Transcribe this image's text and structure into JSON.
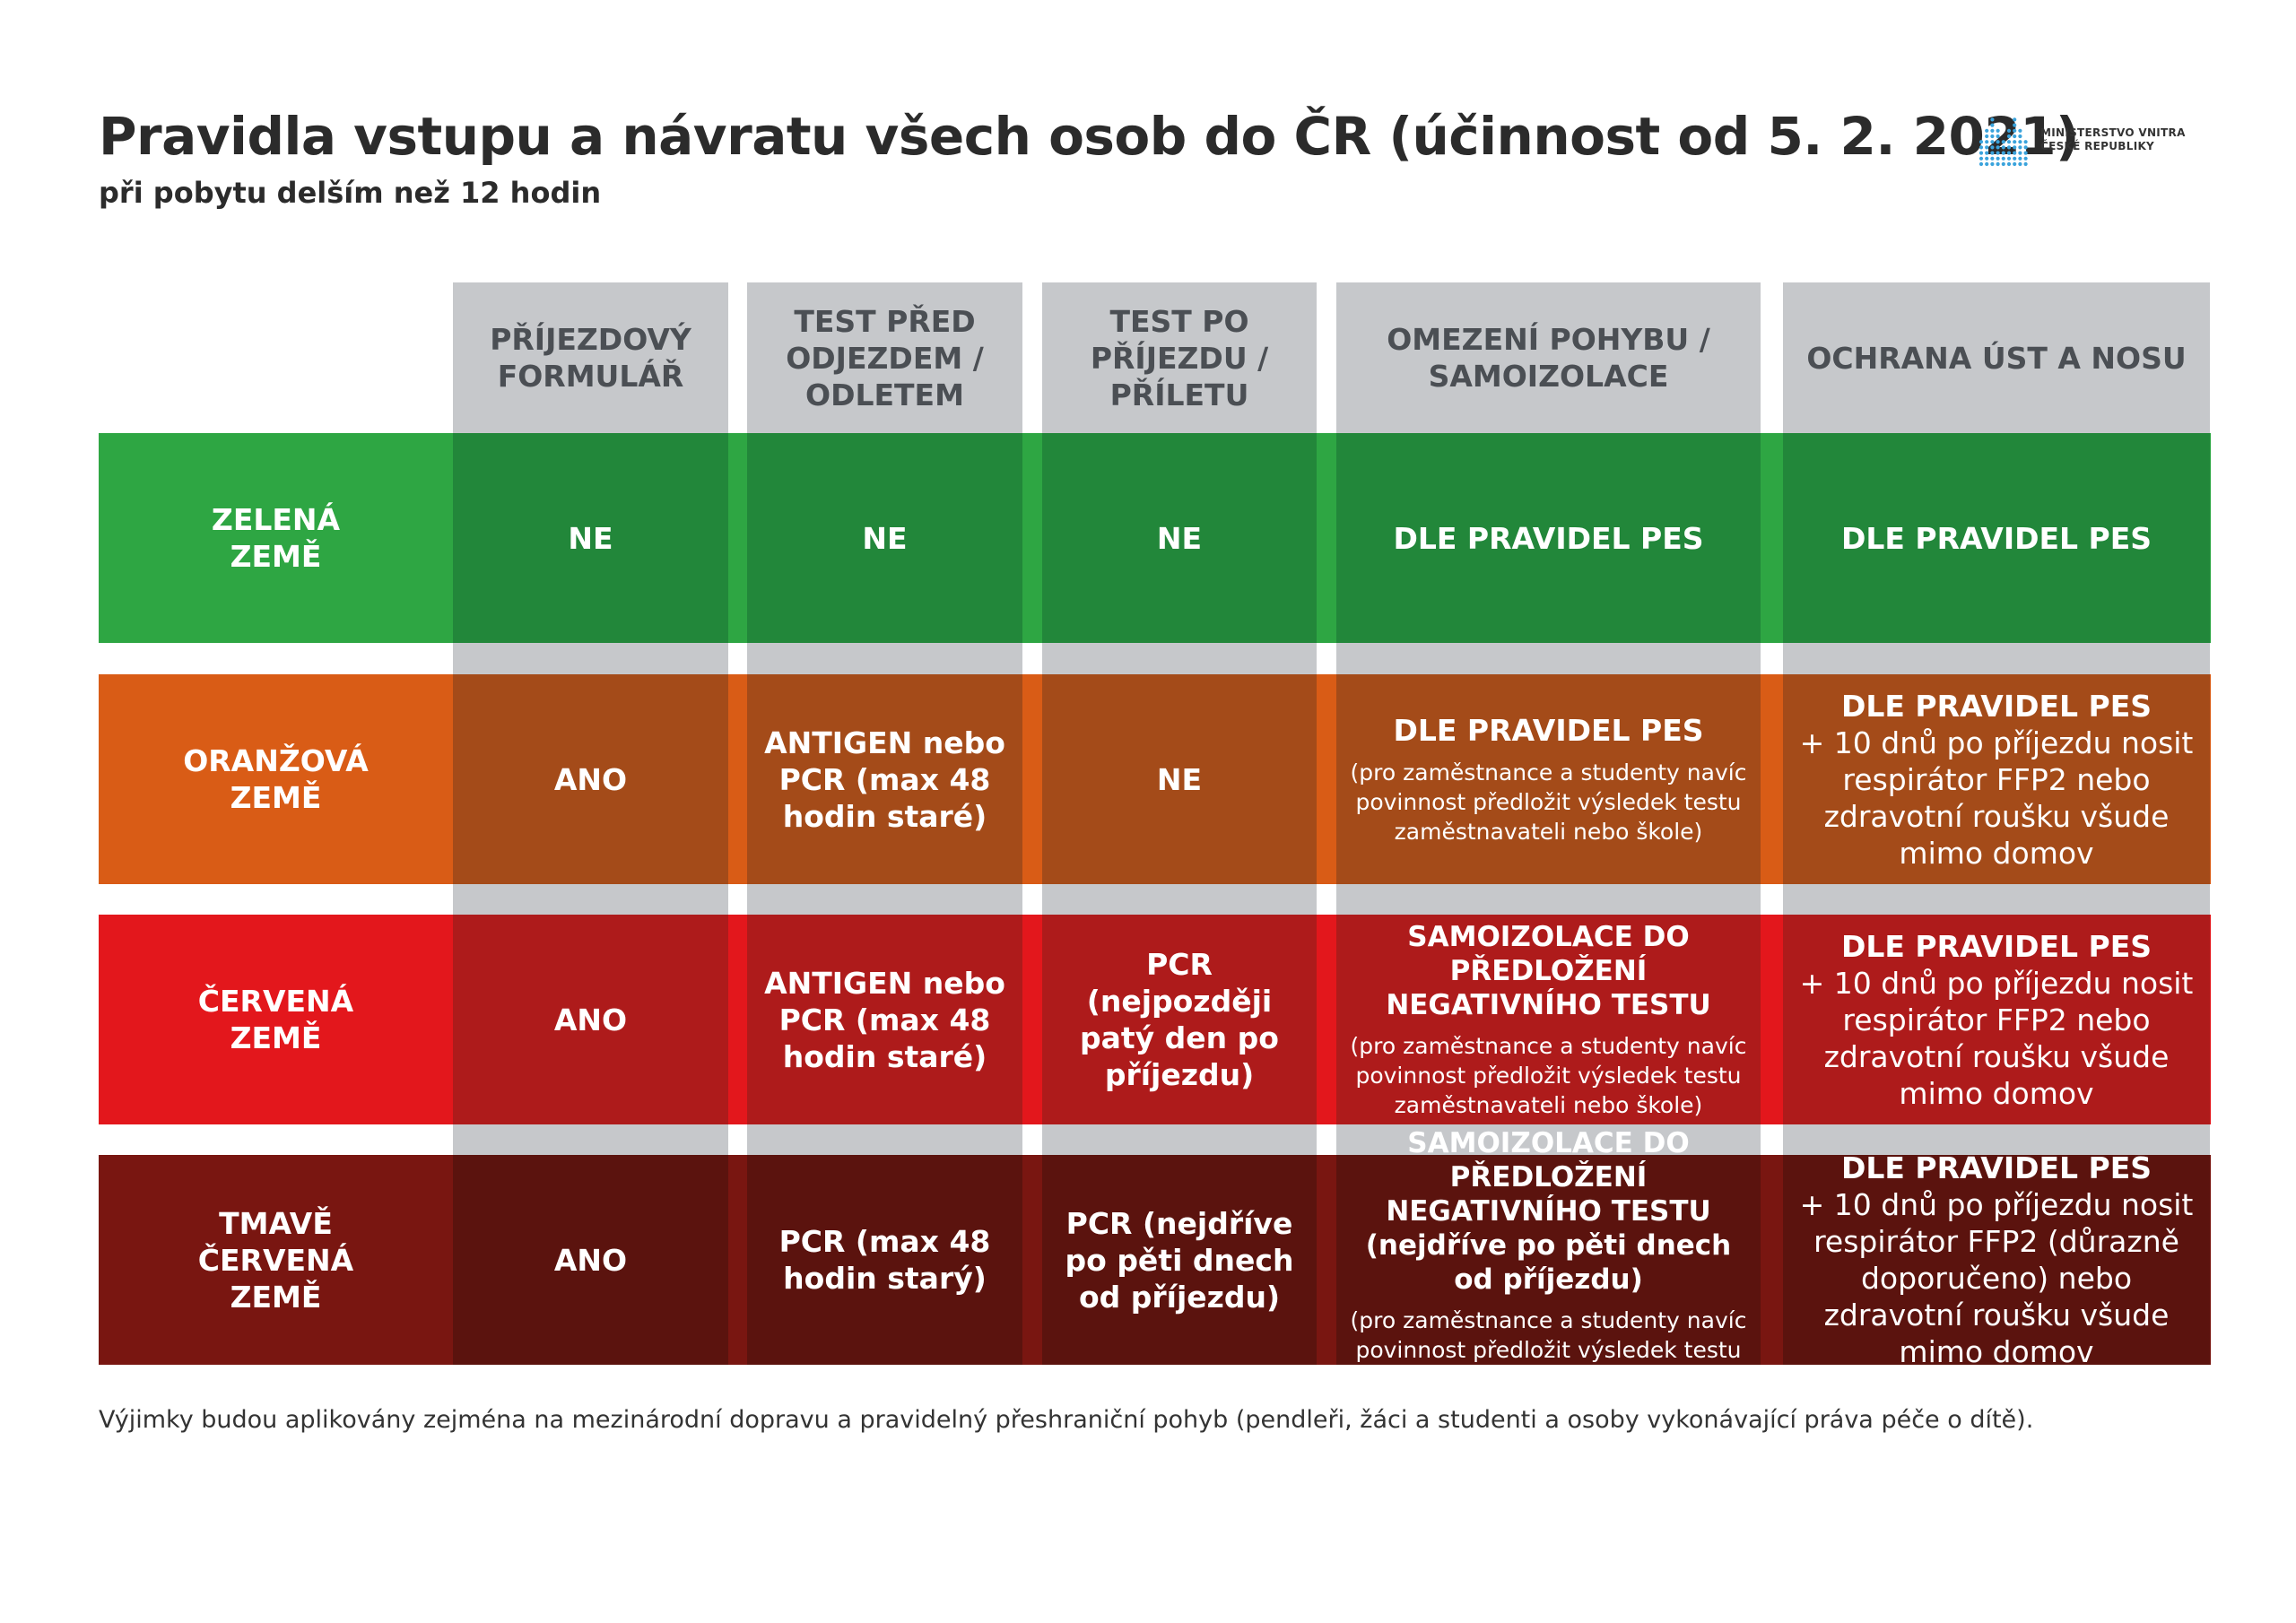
{
  "header": {
    "title": "Pravidla vstupu a návratu všech osob do ČR (účinnost od 5. 2. 2021)",
    "subtitle": "při pobytu delším než 12 hodin",
    "logo_line1": "MINISTERSTVO VNITRA",
    "logo_line2": "ČESKÉ REPUBLIKY",
    "logo_icon": "mvcr-dotted-logo-icon"
  },
  "columns": [
    "PŘÍJEZDOVÝ FORMULÁŘ",
    "TEST PŘED ODJEZDEM / ODLETEM",
    "TEST PO PŘÍJEZDU / PŘÍLETU",
    "OMEZENÍ POHYBU / SAMOIZOLACE",
    "OCHRANA ÚST A NOSU"
  ],
  "rows": [
    {
      "label": "ZELENÁ ZEMĚ",
      "colors": {
        "label": "#2ea643",
        "cell": "#22873a"
      },
      "cells": [
        {
          "main": "NE"
        },
        {
          "main": "NE"
        },
        {
          "main": "NE"
        },
        {
          "main": "DLE PRAVIDEL PES"
        },
        {
          "main": "DLE PRAVIDEL PES"
        }
      ]
    },
    {
      "label": "ORANŽOVÁ ZEMĚ",
      "colors": {
        "label": "#d95c16",
        "cell": "#a44b19"
      },
      "cells": [
        {
          "main": "ANO"
        },
        {
          "main": "ANTIGEN nebo PCR (max 48 hodin staré)"
        },
        {
          "main": "NE"
        },
        {
          "main": "DLE PRAVIDEL PES",
          "note": "(pro zaměstnance a studenty navíc povinnost předložit výsledek testu zaměstnavateli nebo škole)"
        },
        {
          "main": "DLE PRAVIDEL PES",
          "extra": "+ 10 dnů po příjezdu nosit respirátor FFP2 nebo zdravotní roušku všude mimo domov"
        }
      ]
    },
    {
      "label": "ČERVENÁ ZEMĚ",
      "colors": {
        "label": "#e3171c",
        "cell": "#ae1b1b"
      },
      "cells": [
        {
          "main": "ANO"
        },
        {
          "main": "ANTIGEN nebo PCR (max 48 hodin staré)"
        },
        {
          "main": "PCR (nejpozději patý den po příjezdu)"
        },
        {
          "caps": "SAMOIZOLACE DO PŘEDLOŽENÍ NEGATIVNÍHO TESTU",
          "note": "(pro zaměstnance a studenty navíc povinnost předložit výsledek testu zaměstnavateli nebo škole)"
        },
        {
          "main": "DLE PRAVIDEL PES",
          "extra": "+ 10 dnů po příjezdu nosit respirátor FFP2 nebo zdravotní roušku všude mimo domov"
        }
      ]
    },
    {
      "label": "TMAVĚ ČERVENÁ ZEMĚ",
      "colors": {
        "label": "#791611",
        "cell": "#5b130e"
      },
      "cells": [
        {
          "main": "ANO"
        },
        {
          "main": "PCR (max 48 hodin starý)"
        },
        {
          "main": "PCR (nejdříve po pěti dnech od příjezdu)"
        },
        {
          "caps": "SAMOIZOLACE DO PŘEDLOŽENÍ NEGATIVNÍHO TESTU (nejdříve po pěti dnech od příjezdu)",
          "note": "(pro zaměstnance a studenty navíc povinnost předložit výsledek testu zaměstnavateli nebo škole)"
        },
        {
          "main": "DLE PRAVIDEL PES",
          "extra": "+ 10 dnů po příjezdu nosit respirátor FFP2 (důrazně doporučeno) nebo zdravotní roušku všude mimo domov"
        }
      ]
    }
  ],
  "footer": "Výjimky budou aplikovány zejména na mezinárodní dopravu a pravidelný přeshraniční pohyb (pendleři, žáci a studenti a osoby vykonávající práva péče o dítě)."
}
